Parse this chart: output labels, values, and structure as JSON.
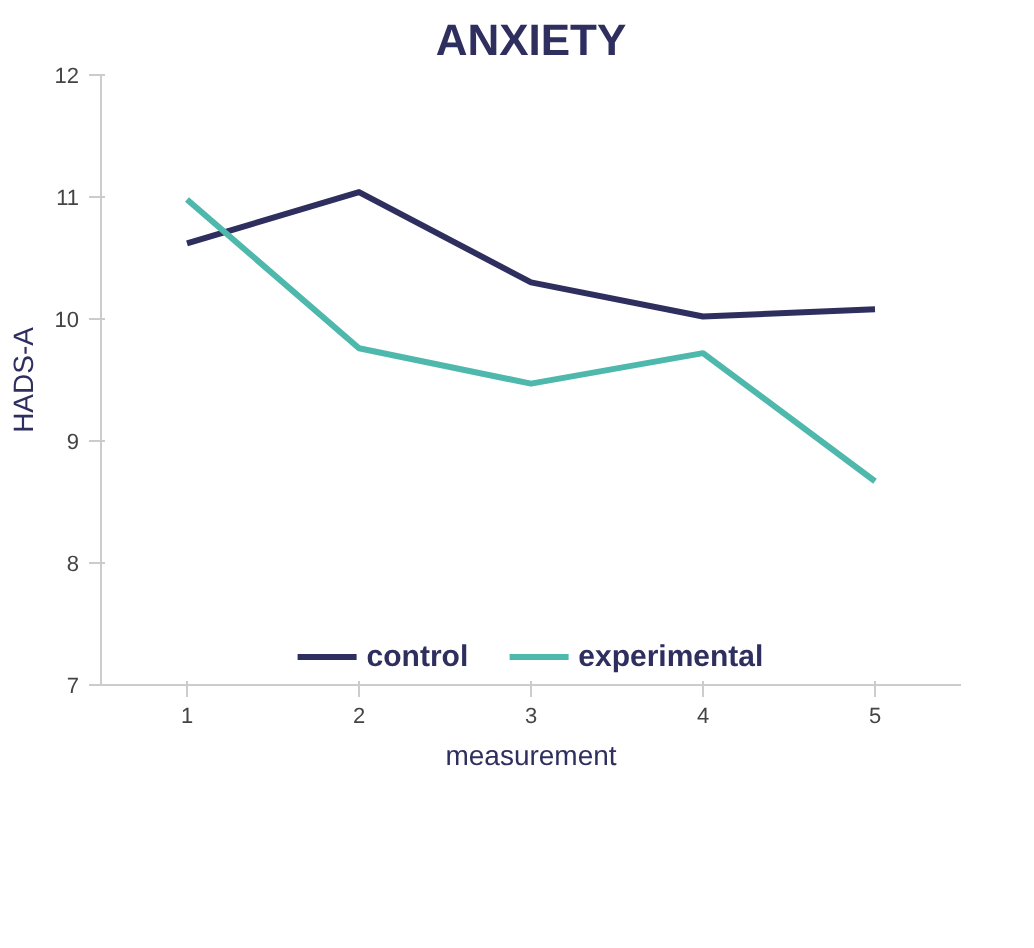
{
  "chart_data": {
    "type": "line",
    "title": "ANXIETY",
    "xlabel": "measurement",
    "ylabel": "HADS-A",
    "x": [
      1,
      2,
      3,
      4,
      5
    ],
    "xlim": [
      0.5,
      5.5
    ],
    "xticks": [
      1,
      2,
      3,
      4,
      5
    ],
    "ylim": [
      7,
      12
    ],
    "yticks": [
      7,
      8,
      9,
      10,
      11,
      12
    ],
    "series": [
      {
        "name": "control",
        "color": "#2e2f5e",
        "values": [
          10.62,
          11.04,
          10.3,
          10.02,
          10.08
        ]
      },
      {
        "name": "experimental",
        "color": "#4fb8ac",
        "values": [
          10.98,
          9.76,
          9.47,
          9.72,
          8.67
        ]
      }
    ],
    "grid": false,
    "legend": "bottom",
    "line_style": "solid",
    "marker": "none"
  }
}
